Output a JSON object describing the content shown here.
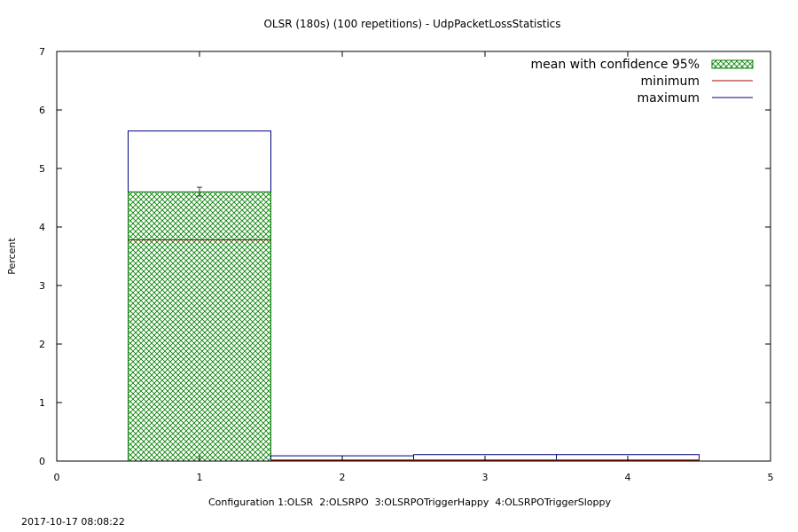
{
  "chart_data": {
    "type": "bar",
    "title": "OLSR (180s) (100 repetitions) - UdpPacketLossStatistics",
    "xlabel": "Configuration 1:OLSR  2:OLSRPO  3:OLSRPOTriggerHappy  4:OLSRPOTriggerSloppy",
    "ylabel": "Percent",
    "xlim": [
      0,
      5
    ],
    "ylim": [
      0,
      7
    ],
    "x_ticks": [
      0,
      1,
      2,
      3,
      4,
      5
    ],
    "y_ticks": [
      0,
      1,
      2,
      3,
      4,
      5,
      6,
      7
    ],
    "categories": [
      1,
      2,
      3,
      4
    ],
    "bar_width": 1,
    "mean": [
      4.6,
      0.02,
      0.02,
      0.02
    ],
    "ci_low": [
      4.53,
      0.02,
      0.02,
      0.02
    ],
    "ci_high": [
      4.68,
      0.02,
      0.02,
      0.02
    ],
    "minimum": [
      3.78,
      0.01,
      0.01,
      0.01
    ],
    "maximum": [
      5.64,
      0.09,
      0.11,
      0.11
    ],
    "legend": {
      "placement": "top-right",
      "entries": [
        "mean with confidence 95%",
        "minimum",
        "maximum"
      ]
    },
    "colors": {
      "mean_hatch": "#008000",
      "minimum": "#aa0000",
      "maximum": "#000080",
      "error_bar": "#404040"
    },
    "timestamp": "2017-10-17 08:08:22",
    "grid": false
  }
}
